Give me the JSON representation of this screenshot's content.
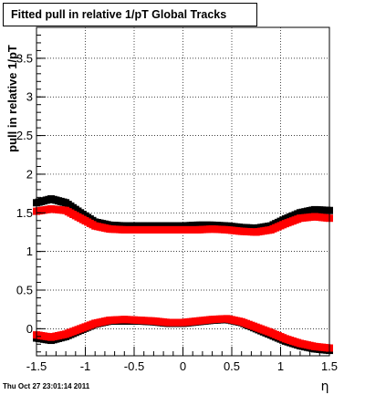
{
  "title": "Fitted pull in relative 1/pT  Global Tracks",
  "timestamp": "Thu Oct 27 23:01:14 2011",
  "chart_data": {
    "type": "scatter",
    "title": "Fitted pull in relative 1/pT  Global Tracks",
    "xlabel": "η",
    "ylabel": "pull in relative 1/pT",
    "xlim": [
      -1.5,
      1.5
    ],
    "ylim": [
      -0.35,
      3.9
    ],
    "xticks": [
      -1.5,
      -1,
      -0.5,
      0,
      0.5,
      1,
      1.5
    ],
    "xtick_labels": [
      "-1.5",
      "-1",
      "-0.5",
      "0",
      "0.5",
      "1",
      "1.5"
    ],
    "yticks": [
      0,
      0.5,
      1,
      1.5,
      2,
      2.5,
      3,
      3.5
    ],
    "ytick_labels": [
      "0",
      "0.5",
      "1",
      "1.5",
      "2",
      "2.5",
      "3",
      "3.5"
    ],
    "grid": true,
    "series": [
      {
        "color": "#000000",
        "x": [
          -1.5,
          -1.35,
          -1.2,
          -1.05,
          -0.9,
          -0.75,
          -0.6,
          -0.45,
          -0.3,
          -0.15,
          0,
          0.15,
          0.3,
          0.45,
          0.6,
          0.75,
          0.9,
          1.05,
          1.2,
          1.35,
          1.5
        ],
        "y": [
          1.63,
          1.68,
          1.63,
          1.5,
          1.38,
          1.34,
          1.33,
          1.33,
          1.33,
          1.33,
          1.33,
          1.34,
          1.34,
          1.33,
          1.31,
          1.3,
          1.33,
          1.42,
          1.5,
          1.54,
          1.53
        ]
      },
      {
        "color": "#ff0000",
        "x": [
          -1.5,
          -1.35,
          -1.2,
          -1.05,
          -0.9,
          -0.75,
          -0.6,
          -0.45,
          -0.3,
          -0.15,
          0,
          0.15,
          0.3,
          0.45,
          0.6,
          0.75,
          0.9,
          1.05,
          1.2,
          1.35,
          1.5
        ],
        "y": [
          1.52,
          1.55,
          1.53,
          1.43,
          1.33,
          1.29,
          1.28,
          1.28,
          1.28,
          1.28,
          1.28,
          1.28,
          1.29,
          1.28,
          1.26,
          1.25,
          1.28,
          1.36,
          1.43,
          1.45,
          1.43
        ]
      },
      {
        "color": "#000000",
        "x": [
          -1.5,
          -1.35,
          -1.2,
          -1.05,
          -0.9,
          -0.75,
          -0.6,
          -0.45,
          -0.3,
          -0.15,
          0,
          0.15,
          0.3,
          0.45,
          0.6,
          0.75,
          0.9,
          1.05,
          1.2,
          1.35,
          1.5
        ],
        "y": [
          -0.12,
          -0.15,
          -0.1,
          -0.02,
          0.06,
          0.1,
          0.1,
          0.1,
          0.09,
          0.07,
          0.07,
          0.09,
          0.11,
          0.12,
          0.08,
          0.0,
          -0.08,
          -0.16,
          -0.22,
          -0.26,
          -0.28
        ]
      },
      {
        "color": "#ff0000",
        "x": [
          -1.5,
          -1.35,
          -1.2,
          -1.05,
          -0.9,
          -0.75,
          -0.6,
          -0.45,
          -0.3,
          -0.15,
          0,
          0.15,
          0.3,
          0.45,
          0.6,
          0.75,
          0.9,
          1.05,
          1.2,
          1.35,
          1.5
        ],
        "y": [
          -0.08,
          -0.11,
          -0.07,
          0.0,
          0.07,
          0.11,
          0.12,
          0.11,
          0.1,
          0.08,
          0.08,
          0.1,
          0.12,
          0.13,
          0.09,
          0.02,
          -0.05,
          -0.13,
          -0.19,
          -0.23,
          -0.25
        ]
      }
    ]
  }
}
